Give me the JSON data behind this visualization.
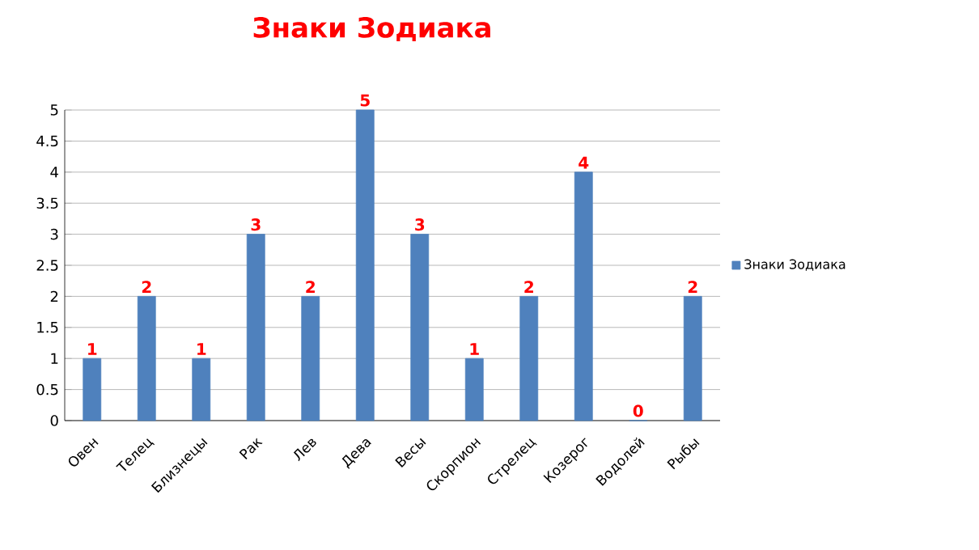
{
  "chart_data": {
    "type": "bar",
    "title": "Знаки Зодиака",
    "categories": [
      "Овен",
      "Телец",
      "Близнецы",
      "Рак",
      "Лев",
      "Дева",
      "Весы",
      "Скорпион",
      "Стрелец",
      "Козерог",
      "Водолей",
      "Рыбы"
    ],
    "series": [
      {
        "name": "Знаки Зодиака",
        "color": "#4f81bd",
        "values": [
          1,
          2,
          1,
          3,
          2,
          5,
          3,
          1,
          2,
          4,
          0,
          2
        ]
      }
    ],
    "ylim": [
      0,
      5
    ],
    "yticks": [
      0,
      0.5,
      1,
      1.5,
      2,
      2.5,
      3,
      3.5,
      4,
      4.5,
      5
    ],
    "grid": "y",
    "legend": "right",
    "data_labels": true
  }
}
